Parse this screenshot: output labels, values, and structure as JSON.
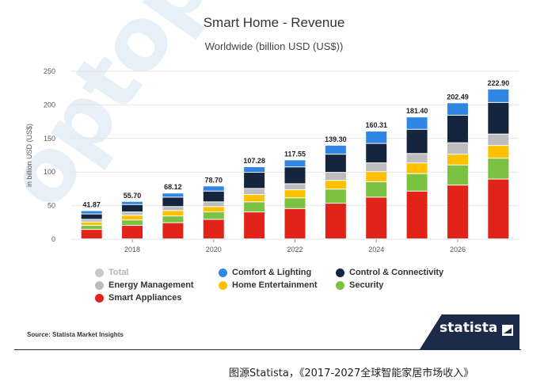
{
  "watermark": "optop",
  "chart_data": {
    "type": "bar",
    "stacked": true,
    "title": "Smart Home - Revenue",
    "subtitle": "Worldwide (billion USD (US$))",
    "ylabel": "in billion USD (US$)",
    "xlabel": "",
    "ylim": [
      0,
      250
    ],
    "yticks": [
      0,
      50,
      100,
      150,
      200,
      250
    ],
    "categories": [
      "2017",
      "2018",
      "2019",
      "2020",
      "2021",
      "2022",
      "2023",
      "2024",
      "2025",
      "2026",
      "2027"
    ],
    "x_tick_labels": [
      "2018",
      "2020",
      "2022",
      "2024",
      "2026"
    ],
    "totals": [
      41.87,
      55.7,
      68.12,
      78.7,
      107.28,
      117.55,
      139.3,
      160.31,
      181.4,
      202.49,
      222.9
    ],
    "total_labels": [
      "41.87",
      "55.70",
      "68.12",
      "78.70",
      "107.28",
      "117.55",
      "139.30",
      "160.31",
      "181.40",
      "202.49",
      "222.90"
    ],
    "series": [
      {
        "name": "Smart Appliances",
        "color": "#e2231a",
        "values": [
          14,
          20,
          24,
          29,
          40,
          45,
          53,
          62,
          71,
          80,
          89
        ]
      },
      {
        "name": "Security",
        "color": "#7bc142",
        "values": [
          6,
          8,
          10,
          11,
          15,
          16,
          21,
          23,
          26,
          30,
          31
        ]
      },
      {
        "name": "Home Entertainment",
        "color": "#ffc000",
        "values": [
          5,
          7,
          8,
          8,
          11,
          12,
          13,
          15,
          16,
          16,
          19
        ]
      },
      {
        "name": "Energy Management",
        "color": "#bdbdbd",
        "values": [
          4,
          5,
          6,
          7,
          9,
          9,
          12,
          13,
          14,
          17,
          17
        ]
      },
      {
        "name": "Control & Connectivity",
        "color": "#14253d",
        "values": [
          8,
          11,
          14,
          16,
          24,
          25,
          27,
          29,
          36,
          41,
          47
        ]
      },
      {
        "name": "Comfort & Lighting",
        "color": "#2f86e5",
        "values": [
          4.87,
          4.7,
          6.12,
          7.7,
          8.28,
          10.55,
          13.3,
          18.31,
          18.4,
          18.49,
          19.9
        ]
      }
    ],
    "legend": [
      {
        "name": "Total",
        "color": "#c9c9c9",
        "muted": true
      },
      {
        "name": "Comfort & Lighting",
        "color": "#2f86e5"
      },
      {
        "name": "Control & Connectivity",
        "color": "#14253d"
      },
      {
        "name": "Energy Management",
        "color": "#bdbdbd"
      },
      {
        "name": "Home Entertainment",
        "color": "#ffc000"
      },
      {
        "name": "Security",
        "color": "#7bc142"
      },
      {
        "name": "Smart Appliances",
        "color": "#e2231a"
      }
    ]
  },
  "source": "Source: Statista Market Insights",
  "brand": "statista",
  "caption": "图源Statista，《2017-2027全球智能家居市场收入》"
}
